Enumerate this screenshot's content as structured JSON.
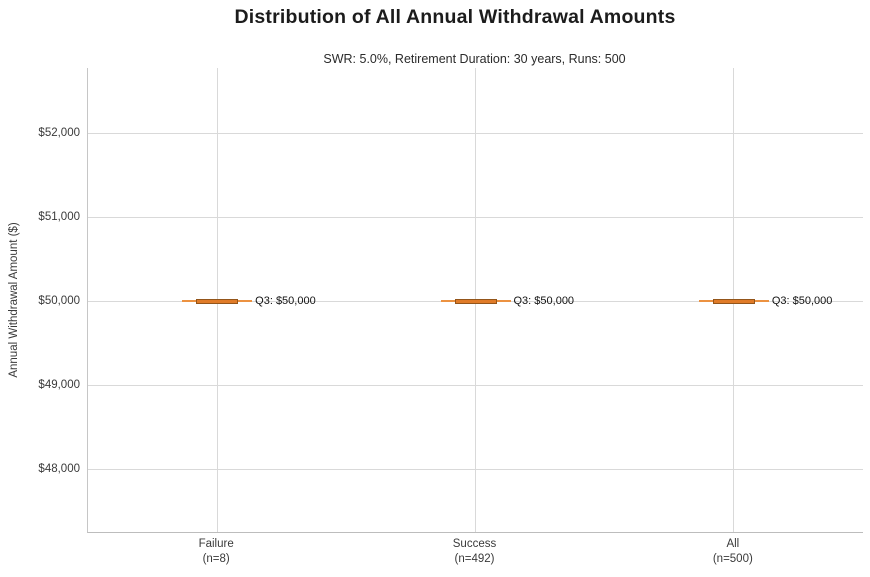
{
  "chart_data": {
    "type": "box",
    "title": "Distribution of All Annual Withdrawal Amounts",
    "subtitle": "SWR: 5.0%, Retirement Duration: 30 years, Runs: 500",
    "ylabel": "Annual Withdrawal Amount ($)",
    "xlabel": "",
    "ylim": [
      47250,
      52775
    ],
    "grid": "on",
    "legend": "none",
    "y_ticks": [
      {
        "value": 48000,
        "label": "$48,000"
      },
      {
        "value": 49000,
        "label": "$49,000"
      },
      {
        "value": 50000,
        "label": "$50,000"
      },
      {
        "value": 51000,
        "label": "$51,000"
      },
      {
        "value": 52000,
        "label": "$52,000"
      }
    ],
    "categories": [
      {
        "label": "Failure",
        "sublabel": "(n=8)"
      },
      {
        "label": "Success",
        "sublabel": "(n=492)"
      },
      {
        "label": "All",
        "sublabel": "(n=500)"
      }
    ],
    "boxes": [
      {
        "category": "Failure",
        "n": 8,
        "whisker_low": 50000,
        "q1": 50000,
        "median": 50000,
        "q3": 50000,
        "whisker_high": 50000,
        "annotation": "Q3: $50,000"
      },
      {
        "category": "Success",
        "n": 492,
        "whisker_low": 50000,
        "q1": 50000,
        "median": 50000,
        "q3": 50000,
        "whisker_high": 50000,
        "annotation": "Q3: $50,000"
      },
      {
        "category": "All",
        "n": 500,
        "whisker_low": 50000,
        "q1": 50000,
        "median": 50000,
        "q3": 50000,
        "whisker_high": 50000,
        "annotation": "Q3: $50,000"
      }
    ],
    "colors": {
      "whisker": "#ec9241",
      "box_fill": "#e07b28",
      "box_edge": "#93551a",
      "grid": "#d9d9d9",
      "axis": "#c4c4c4",
      "annotation_text": "#111111"
    }
  }
}
